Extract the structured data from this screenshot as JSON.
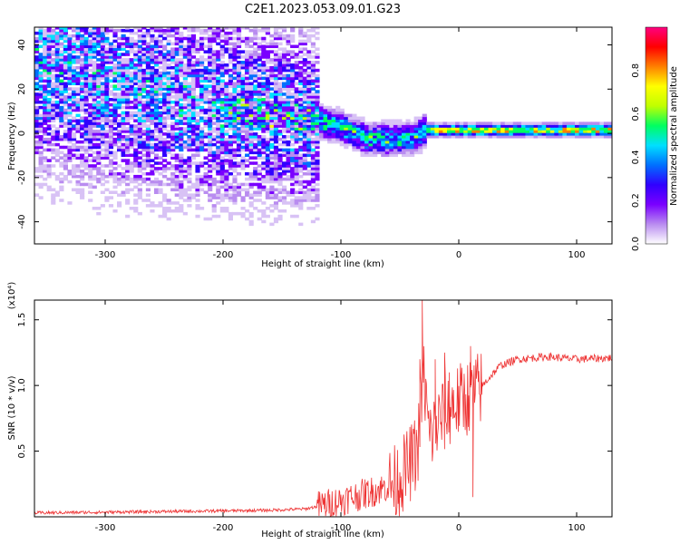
{
  "title": "C2E1.2023.053.09.01.G23",
  "chart_data": [
    {
      "type": "heatmap",
      "xlabel": "Height of straight line (km)",
      "ylabel": "Frequency (Hz)",
      "xlim": [
        -360,
        130
      ],
      "ylim": [
        -50,
        48
      ],
      "xticks": [
        -300,
        -200,
        -100,
        0,
        100
      ],
      "yticks": [
        -40,
        -20,
        0,
        20,
        40
      ],
      "colorbar": {
        "label": "Normalized spectral amplitude",
        "range": [
          0,
          1
        ],
        "ticks": [
          "0.0",
          "0.2",
          "0.4",
          "0.6",
          "0.8"
        ],
        "tick_values": [
          0,
          0.2,
          0.4,
          0.6,
          0.8
        ],
        "colors": [
          "#ffffff",
          "#b98cf0",
          "#7a00ff",
          "#3000ff",
          "#0070ff",
          "#00e0ff",
          "#00ff60",
          "#c0ff00",
          "#ffff00",
          "#ff8000",
          "#ff0000",
          "#ff0080"
        ]
      },
      "ridge": [
        {
          "x": -350,
          "y": 30
        },
        {
          "x": -300,
          "y": 22
        },
        {
          "x": -250,
          "y": 16
        },
        {
          "x": -200,
          "y": 10
        },
        {
          "x": -150,
          "y": 8
        },
        {
          "x": -120,
          "y": 5
        },
        {
          "x": -100,
          "y": 2
        },
        {
          "x": -80,
          "y": -3
        },
        {
          "x": -60,
          "y": -3
        },
        {
          "x": -40,
          "y": -3
        },
        {
          "x": -30,
          "y": 1
        },
        {
          "x": 0,
          "y": 1
        },
        {
          "x": 50,
          "y": 1
        },
        {
          "x": 100,
          "y": 1
        },
        {
          "x": 130,
          "y": 1
        }
      ]
    },
    {
      "type": "line",
      "xlabel": "Height of straight line (km)",
      "ylabel": "SNR (10 * v/v)",
      "yscale_label": "(x10⁴)",
      "xlim": [
        -360,
        130
      ],
      "ylim": [
        0,
        1.65
      ],
      "xticks": [
        -300,
        -200,
        -100,
        0,
        100
      ],
      "yticks": [
        0.5,
        1.0,
        1.5
      ],
      "yticklabels": [
        "0.5",
        "1.0",
        "1.5"
      ],
      "series": [
        {
          "color": "#ee3333",
          "points": [
            {
              "x": -360,
              "y": 0.03
            },
            {
              "x": -300,
              "y": 0.035
            },
            {
              "x": -250,
              "y": 0.04
            },
            {
              "x": -200,
              "y": 0.045
            },
            {
              "x": -160,
              "y": 0.05
            },
            {
              "x": -130,
              "y": 0.06
            },
            {
              "x": -110,
              "y": 0.1
            },
            {
              "x": -90,
              "y": 0.15
            },
            {
              "x": -70,
              "y": 0.2
            },
            {
              "x": -55,
              "y": 0.25
            },
            {
              "x": -45,
              "y": 0.35
            },
            {
              "x": -35,
              "y": 0.5
            },
            {
              "x": -30,
              "y": 1.1
            },
            {
              "x": -25,
              "y": 0.6
            },
            {
              "x": -15,
              "y": 0.75
            },
            {
              "x": -5,
              "y": 0.85
            },
            {
              "x": 5,
              "y": 0.9
            },
            {
              "x": 15,
              "y": 0.95
            },
            {
              "x": 25,
              "y": 1.05
            },
            {
              "x": 35,
              "y": 1.15
            },
            {
              "x": 50,
              "y": 1.2
            },
            {
              "x": 75,
              "y": 1.22
            },
            {
              "x": 100,
              "y": 1.2
            },
            {
              "x": 130,
              "y": 1.21
            }
          ],
          "spikes": [
            {
              "x": -31,
              "y": 1.65
            },
            {
              "x": -33,
              "y": 1.2
            },
            {
              "x": -28,
              "y": 1.05
            },
            {
              "x": -20,
              "y": 1.2
            },
            {
              "x": -12,
              "y": 1.25
            },
            {
              "x": -8,
              "y": 1.1
            },
            {
              "x": 10,
              "y": 1.3
            },
            {
              "x": 12,
              "y": 0.15
            }
          ]
        }
      ]
    }
  ]
}
